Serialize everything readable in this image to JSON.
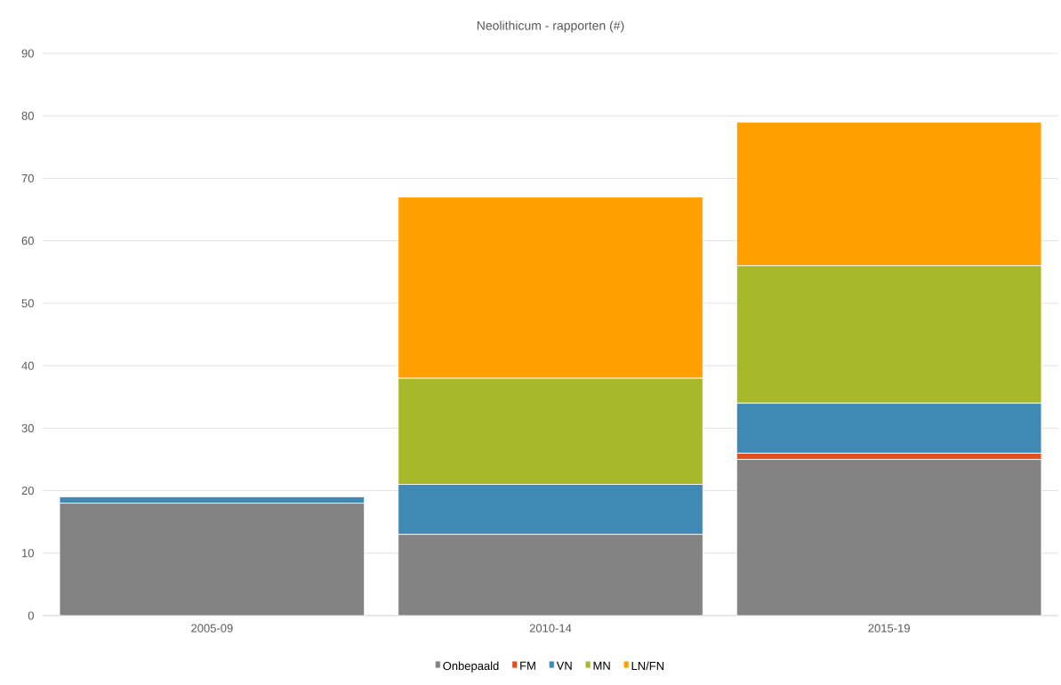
{
  "chart_data": {
    "type": "bar",
    "title": "Neolithicum - rapporten (#)",
    "stacked": true,
    "categories": [
      "2005-09",
      "2010-14",
      "2015-19"
    ],
    "series": [
      {
        "name": "Onbepaald",
        "color": "#838383",
        "values": [
          18,
          13,
          25
        ]
      },
      {
        "name": "FM",
        "color": "#e0501e",
        "values": [
          0,
          0,
          1
        ]
      },
      {
        "name": "VN",
        "color": "#3f89b4",
        "values": [
          1,
          8,
          8
        ]
      },
      {
        "name": "MN",
        "color": "#a7b92a",
        "values": [
          0,
          17,
          22
        ]
      },
      {
        "name": "LN/FN",
        "color": "#ffa000",
        "values": [
          0,
          29,
          23
        ]
      }
    ],
    "ylim": [
      0,
      90
    ],
    "yticks": [
      0,
      10,
      20,
      30,
      40,
      50,
      60,
      70,
      80,
      90
    ],
    "grid": "y",
    "legend": "bottom"
  }
}
